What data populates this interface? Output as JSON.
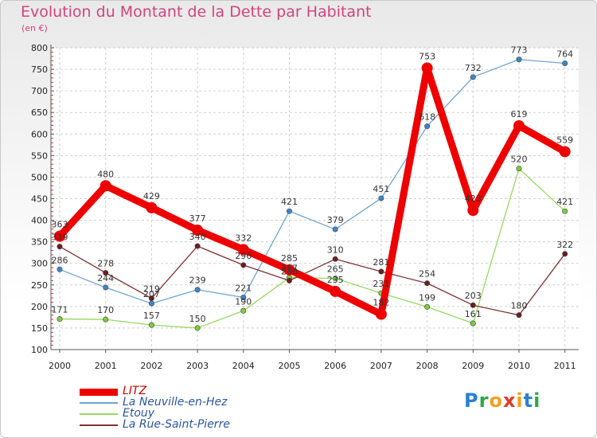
{
  "chart_data": {
    "type": "line",
    "title": "Evolution du Montant de la Dette par Habitant",
    "subtitle": "(en €)",
    "xlabel": "",
    "ylabel": "",
    "ylim": [
      100,
      800
    ],
    "yticks": [
      100,
      150,
      200,
      250,
      300,
      350,
      400,
      450,
      500,
      550,
      600,
      650,
      700,
      750,
      800
    ],
    "categories": [
      "2000",
      "2001",
      "2002",
      "2003",
      "2004",
      "2005",
      "2006",
      "2007",
      "2008",
      "2009",
      "2010",
      "2011"
    ],
    "grid": true,
    "legend_position": "bottom-left",
    "series": [
      {
        "name": "LITZ",
        "color": "#ee0000",
        "marker_color": "#ee0000",
        "emphasis": true,
        "values": [
          363,
          480,
          429,
          377,
          332,
          285,
          235,
          182,
          753,
          423,
          619,
          559
        ]
      },
      {
        "name": "La Neuville-en-Hez",
        "color": "#6fa4cf",
        "marker_color": "#3d86c6",
        "emphasis": false,
        "values": [
          286,
          244,
          207,
          239,
          221,
          421,
          379,
          451,
          618,
          732,
          773,
          764
        ]
      },
      {
        "name": "Etouy",
        "color": "#97d95f",
        "marker_color": "#7ccc3c",
        "emphasis": false,
        "values": [
          171,
          170,
          157,
          150,
          190,
          267,
          265,
          231,
          199,
          161,
          520,
          421
        ]
      },
      {
        "name": "La Rue-Saint-Pierre",
        "color": "#7f3232",
        "marker_color": "#6b1f1f",
        "emphasis": false,
        "values": [
          339,
          278,
          219,
          340,
          296,
          260,
          310,
          281,
          254,
          203,
          180,
          322
        ]
      }
    ]
  },
  "logo": {
    "letters": [
      "P",
      "r",
      "o",
      "x",
      "i",
      "t",
      "i"
    ],
    "colors": [
      "#2a7fd4",
      "#2aa84a",
      "#f0a020",
      "#e23a2a",
      "#f0a020",
      "#2a7fd4",
      "#2aa84a"
    ]
  }
}
